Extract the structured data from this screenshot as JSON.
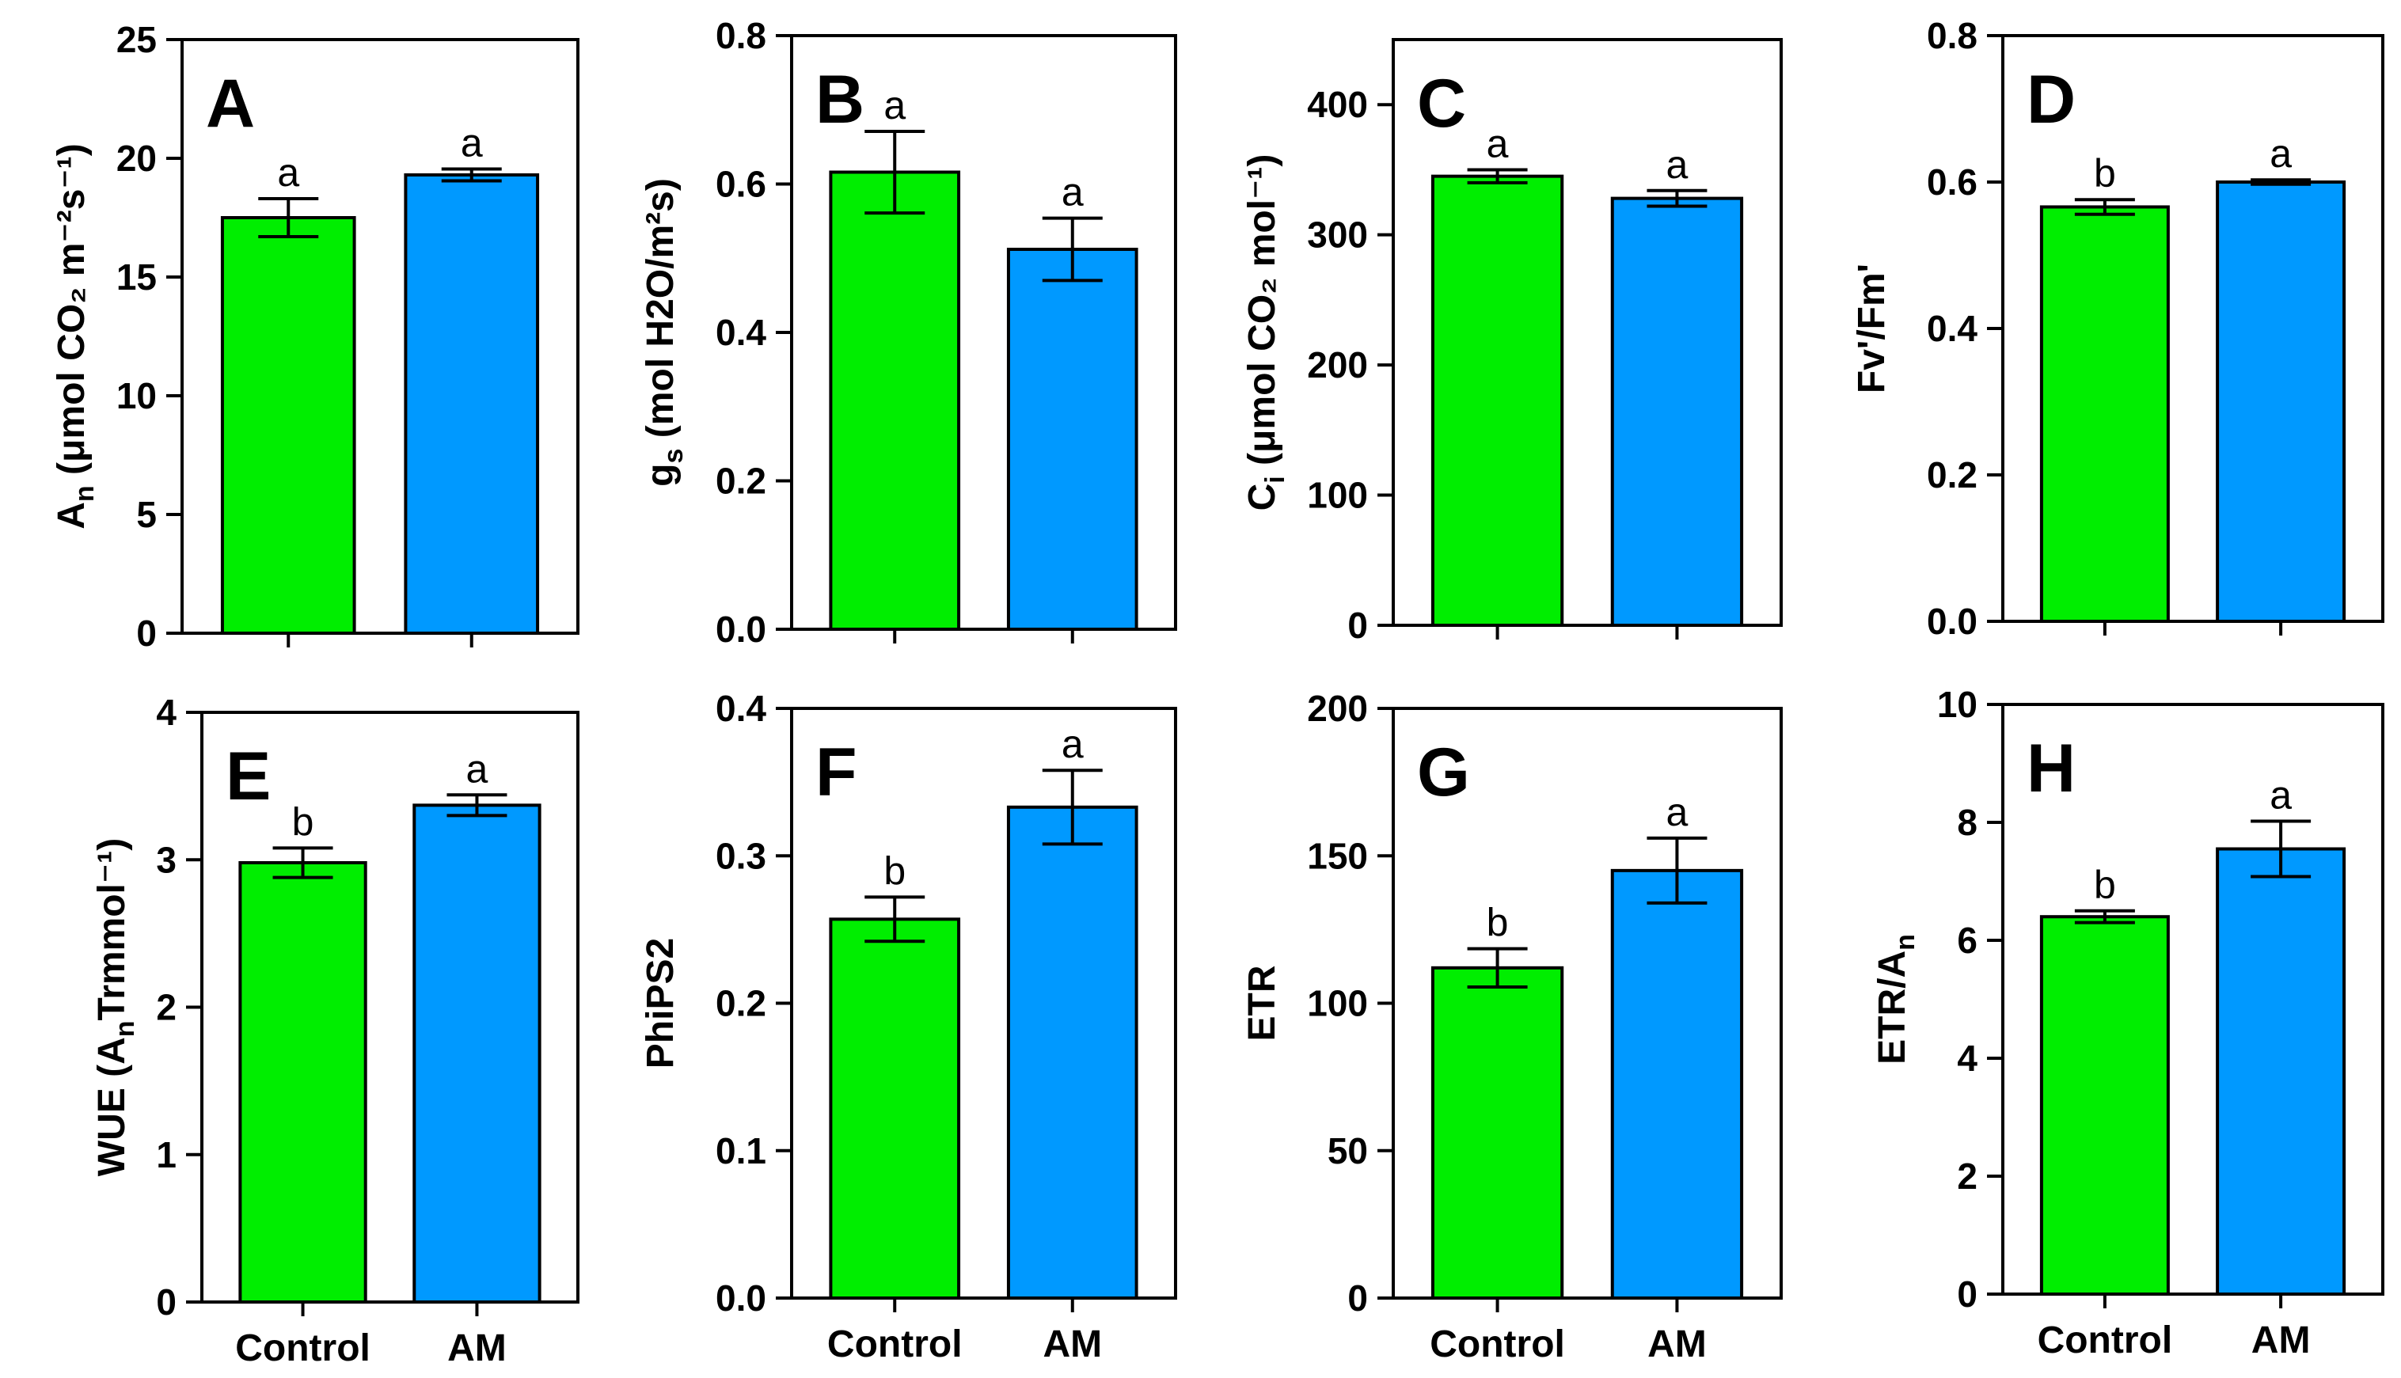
{
  "colors": {
    "control": "#00ee00",
    "am": "#0099ff",
    "axis": "#000000"
  },
  "chart_data": [
    {
      "type": "bar",
      "panel": "A",
      "ylabel_main": "A",
      "ylabel_sub": "n",
      "ylabel_rest": " (μmol CO₂ m⁻²s⁻¹)",
      "categories": [
        "Control",
        "AM"
      ],
      "values": [
        17.5,
        19.3
      ],
      "errors": [
        0.8,
        0.25
      ],
      "letters": [
        "a",
        "a"
      ],
      "ylim": [
        0,
        25
      ],
      "yticks": [
        "0",
        "5",
        "10",
        "15",
        "20",
        "25"
      ]
    },
    {
      "type": "bar",
      "panel": "B",
      "ylabel_main": "g",
      "ylabel_sub": "s",
      "ylabel_rest": " (mol H2O/m²s)",
      "categories": [
        "Control",
        "AM"
      ],
      "values": [
        0.616,
        0.512
      ],
      "errors": [
        0.055,
        0.042
      ],
      "letters": [
        "a",
        "a"
      ],
      "ylim": [
        0,
        0.8
      ],
      "yticks": [
        "0.0",
        "0.2",
        "0.4",
        "0.6",
        "0.8"
      ]
    },
    {
      "type": "bar",
      "panel": "C",
      "ylabel_main": "C",
      "ylabel_sub": "i",
      "ylabel_rest": " (μmol CO₂ mol⁻¹)",
      "categories": [
        "Control",
        "AM"
      ],
      "values": [
        345,
        328
      ],
      "errors": [
        5,
        6
      ],
      "letters": [
        "a",
        "a"
      ],
      "ylim": [
        0,
        450
      ],
      "yticks": [
        "0",
        "100",
        "200",
        "300",
        "400"
      ]
    },
    {
      "type": "bar",
      "panel": "D",
      "ylabel_main": "Fv'/Fm'",
      "ylabel_sub": "",
      "ylabel_rest": "",
      "categories": [
        "Control",
        "AM"
      ],
      "values": [
        0.566,
        0.6
      ],
      "errors": [
        0.01,
        0.003
      ],
      "letters": [
        "b",
        "a"
      ],
      "ylim": [
        0,
        0.8
      ],
      "yticks": [
        "0.0",
        "0.2",
        "0.4",
        "0.6",
        "0.8"
      ]
    },
    {
      "type": "bar",
      "panel": "E",
      "ylabel_main": "WUE (A",
      "ylabel_sub": "n",
      "ylabel_rest": "Trmmol⁻¹)",
      "categories": [
        "Control",
        "AM"
      ],
      "values": [
        2.98,
        3.37
      ],
      "errors": [
        0.1,
        0.07
      ],
      "letters": [
        "b",
        "a"
      ],
      "ylim": [
        0,
        4
      ],
      "yticks": [
        "0",
        "1",
        "2",
        "3",
        "4"
      ]
    },
    {
      "type": "bar",
      "panel": "F",
      "ylabel_main": "PhiPS2",
      "ylabel_sub": "",
      "ylabel_rest": "",
      "categories": [
        "Control",
        "AM"
      ],
      "values": [
        0.257,
        0.333
      ],
      "errors": [
        0.015,
        0.025
      ],
      "letters": [
        "b",
        "a"
      ],
      "ylim": [
        0,
        0.4
      ],
      "yticks": [
        "0.0",
        "0.1",
        "0.2",
        "0.3",
        "0.4"
      ]
    },
    {
      "type": "bar",
      "panel": "G",
      "ylabel_main": "ETR",
      "ylabel_sub": "",
      "ylabel_rest": "",
      "categories": [
        "Control",
        "AM"
      ],
      "values": [
        112,
        145
      ],
      "errors": [
        6.5,
        11
      ],
      "letters": [
        "b",
        "a"
      ],
      "ylim": [
        0,
        200
      ],
      "yticks": [
        "0",
        "50",
        "100",
        "150",
        "200"
      ]
    },
    {
      "type": "bar",
      "panel": "H",
      "ylabel_main": "ETR/A",
      "ylabel_sub": "n",
      "ylabel_rest": "",
      "categories": [
        "Control",
        "AM"
      ],
      "values": [
        6.4,
        7.55
      ],
      "errors": [
        0.1,
        0.47
      ],
      "letters": [
        "b",
        "a"
      ],
      "ylim": [
        0,
        10
      ],
      "yticks": [
        "0",
        "2",
        "4",
        "6",
        "8",
        "10"
      ]
    }
  ]
}
